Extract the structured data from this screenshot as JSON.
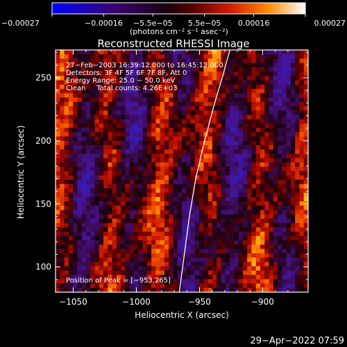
{
  "chart_data": {
    "type": "heatmap",
    "title": "Reconstructed RHESSI Image",
    "xlabel": "Heliocentric X (arcsec)",
    "ylabel": "Heliocentric Y (arcsec)",
    "xlim": [
      -1064,
      -864
    ],
    "ylim": [
      80,
      272
    ],
    "xticks": [
      -1050,
      -1000,
      -950,
      -900
    ],
    "yticks": [
      100,
      150,
      200,
      250
    ],
    "xtick_labels": [
      "−1050",
      "−1000",
      "−950",
      "−900"
    ],
    "ytick_labels": [
      "100",
      "150",
      "200",
      "250"
    ],
    "colorbar": {
      "range": [
        -0.00027,
        0.00027
      ],
      "ticks": [
        -0.00027,
        -0.00016,
        -5.5e-05,
        5.5e-05,
        0.00016,
        0.00027
      ],
      "tick_labels": [
        "−0.00027",
        "−0.00016",
        "−5.5e−05",
        "5.5e−05",
        "0.00016",
        "0.00027"
      ],
      "unit_label": "(photons cm⁻² s⁻¹ asec⁻²)"
    },
    "annotations": [
      "27−Feb−2003 16:39:12.000 to 16:45:12.000",
      "Detectors: 3F 4F 5F 6F 7F 8F, Att 0",
      "Energy Range: 25.0 − 50.0 keV",
      "Clean     Total counts: 4.26E+03"
    ],
    "peak_label": "Position of Peak = [−953,265]",
    "peak": [
      -953,
      265
    ],
    "solar_limb": [
      [
        -966,
        80
      ],
      [
        -962,
        110
      ],
      [
        -958,
        140
      ],
      [
        -953,
        170
      ],
      [
        -946,
        200
      ],
      [
        -938,
        230
      ],
      [
        -932,
        250
      ],
      [
        -926,
        272
      ]
    ],
    "grid": false
  },
  "footer": {
    "timestamp": "29−Apr−2022 07:59"
  }
}
